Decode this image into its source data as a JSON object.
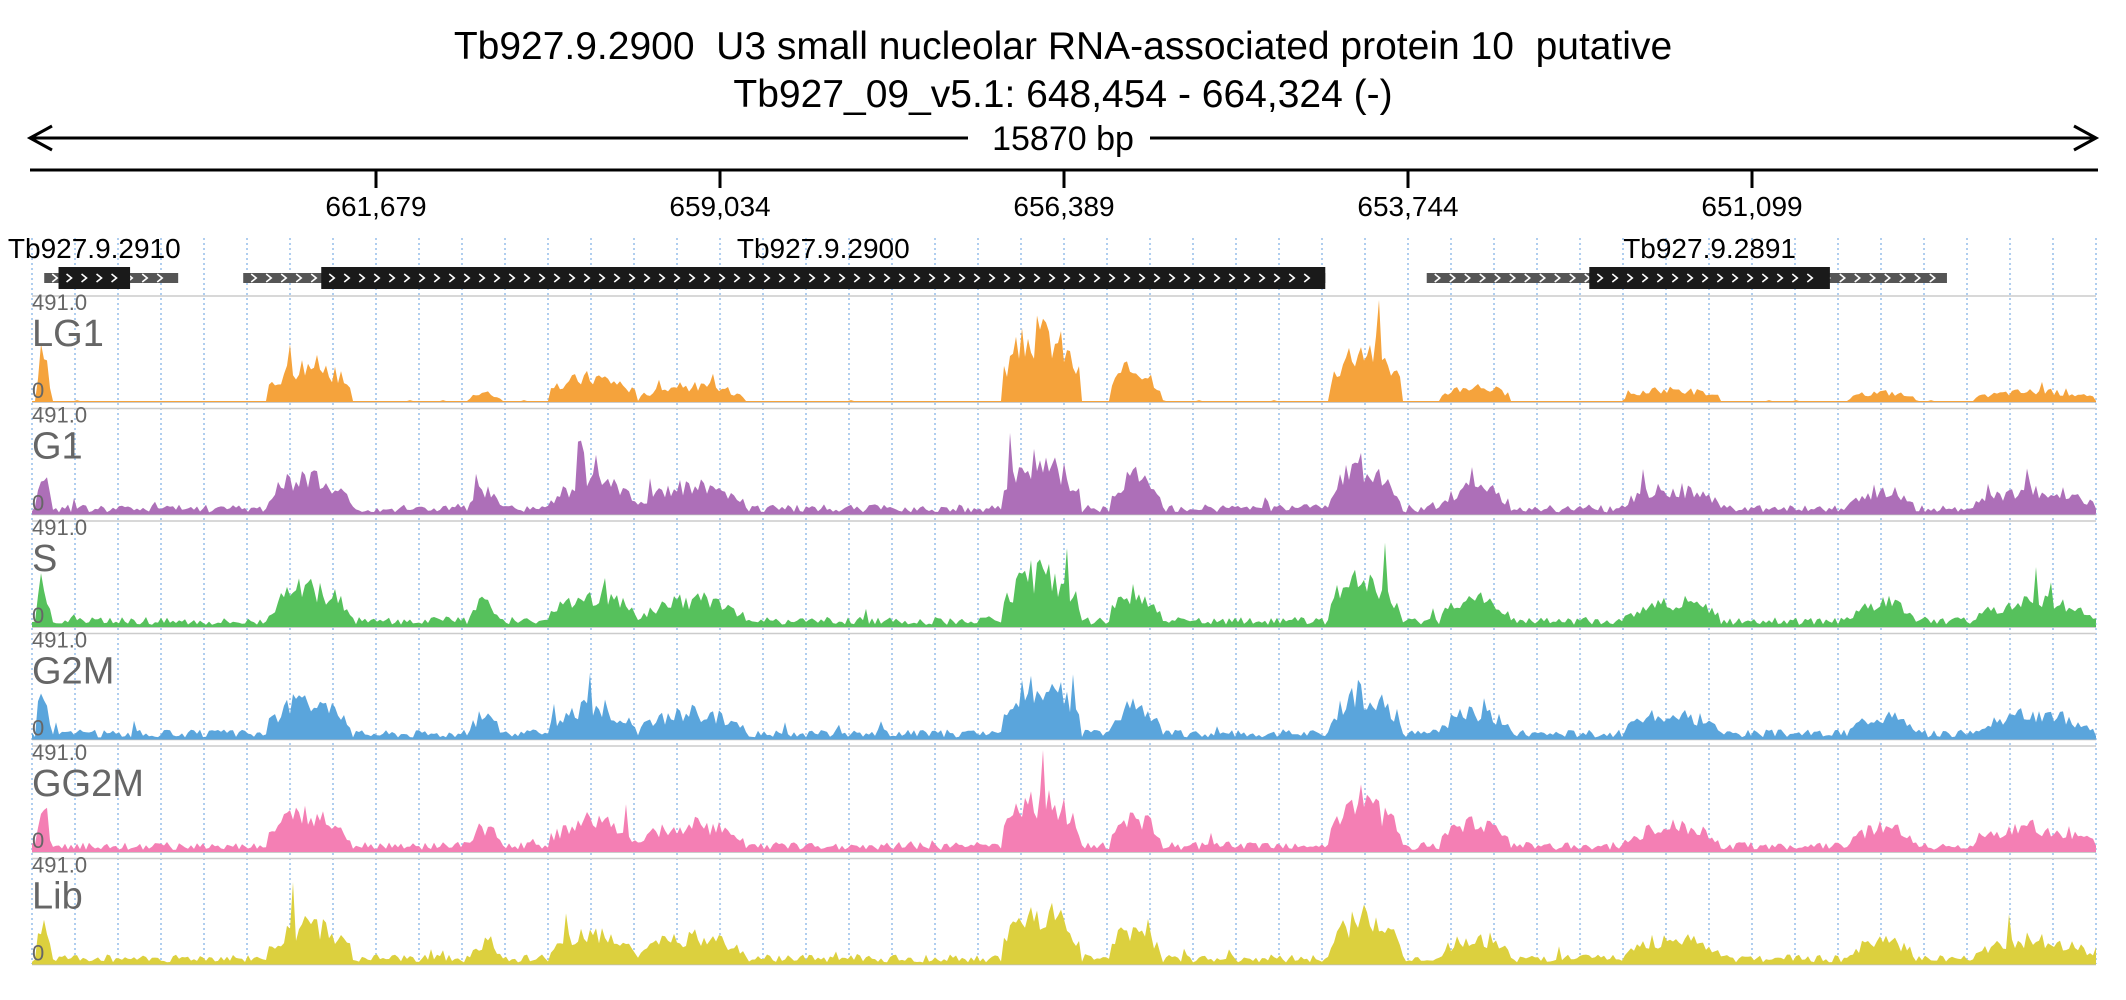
{
  "header": {
    "gene_title": "Tb927.9.2900  U3 small nucleolar RNA-associated protein 10  putative",
    "locus": "Tb927_09_v5.1: 648,454 - 664,324 (-)",
    "span_label": "15870 bp"
  },
  "ruler": {
    "ticks": [
      {
        "label": "661,679",
        "pos": 661679
      },
      {
        "label": "659,034",
        "pos": 659034
      },
      {
        "label": "656,389",
        "pos": 656389
      },
      {
        "label": "653,744",
        "pos": 653744
      },
      {
        "label": "651,099",
        "pos": 651099
      }
    ],
    "view_start": 664324,
    "view_end": 648454
  },
  "genes": [
    {
      "name": "Tb927.9.2910",
      "label": "Tb927.9.2910",
      "utr": [
        664230,
        663200
      ],
      "cds": [
        664120,
        663570
      ]
    },
    {
      "name": "Tb927.9.2900",
      "label": "Tb927.9.2900",
      "utr": [
        662700,
        654380
      ],
      "cds": [
        662100,
        654380
      ]
    },
    {
      "name": "Tb927.9.2891",
      "label": "Tb927.9.2891",
      "utr": [
        653600,
        649600
      ],
      "cds": [
        652350,
        650500
      ]
    }
  ],
  "colors": {
    "LG1": "#f5a33c",
    "G1": "#ad6fb8",
    "S": "#56c15c",
    "G2M": "#5aa5dc",
    "GG2M": "#f47fb4",
    "Lib": "#dcd03e",
    "gene_block": "#1a1a1a",
    "utr_block": "#555555",
    "grid": "#8fb9e8",
    "track_label": "#666666"
  },
  "tracks": [
    {
      "name": "LG1",
      "max_label": "491.0",
      "min_label": "0"
    },
    {
      "name": "G1",
      "max_label": "491.0",
      "min_label": "0"
    },
    {
      "name": "S",
      "max_label": "491.0",
      "min_label": "0"
    },
    {
      "name": "G2M",
      "max_label": "491.0",
      "min_label": "0"
    },
    {
      "name": "GG2M",
      "max_label": "491.0",
      "min_label": "0"
    },
    {
      "name": "Lib",
      "max_label": "491.0",
      "min_label": "0"
    }
  ]
}
